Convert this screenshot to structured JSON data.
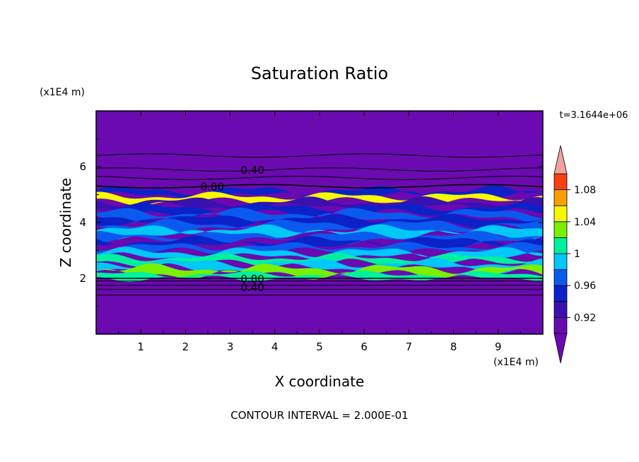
{
  "chart_data": {
    "type": "heatmap",
    "title": "Saturation Ratio",
    "xlabel": "X coordinate",
    "ylabel": "Z coordinate",
    "x_unit": "(x1E4 m)",
    "y_unit": "(x1E4 m)",
    "time_label": "t=3.1644e+06",
    "footer": "CONTOUR INTERVAL = 2.000E-01",
    "xlim": [
      0,
      10
    ],
    "ylim": [
      0,
      8
    ],
    "x_ticks": [
      "1",
      "2",
      "3",
      "4",
      "5",
      "6",
      "7",
      "8",
      "9"
    ],
    "y_ticks": [
      "2",
      "4",
      "6"
    ],
    "colorbar": {
      "levels": [
        0.9,
        0.92,
        0.94,
        0.96,
        0.98,
        1.0,
        1.02,
        1.04,
        1.06,
        1.08,
        1.1
      ],
      "tick_labels": [
        "0.92",
        "0.96",
        "1",
        "1.04",
        "1.08"
      ],
      "colors": [
        "#6a0ab0",
        "#3a10b0",
        "#0a22c8",
        "#0a5af0",
        "#00c8f8",
        "#00f0a0",
        "#78f000",
        "#f8f800",
        "#f8a000",
        "#f84010",
        "#f01e28",
        "#f4a0a0"
      ],
      "extend": "both"
    },
    "contour_labels": [
      {
        "text": "0.40",
        "x": 3.5,
        "z": 5.9
      },
      {
        "text": "0.80",
        "x": 2.6,
        "z": 5.3
      },
      {
        "text": "0.80",
        "x": 3.5,
        "z": 2.0
      },
      {
        "text": "0.40",
        "x": 3.5,
        "z": 1.7
      }
    ],
    "background_value_below": 0.9,
    "moist_layer_z": [
      2.0,
      5.1
    ]
  }
}
